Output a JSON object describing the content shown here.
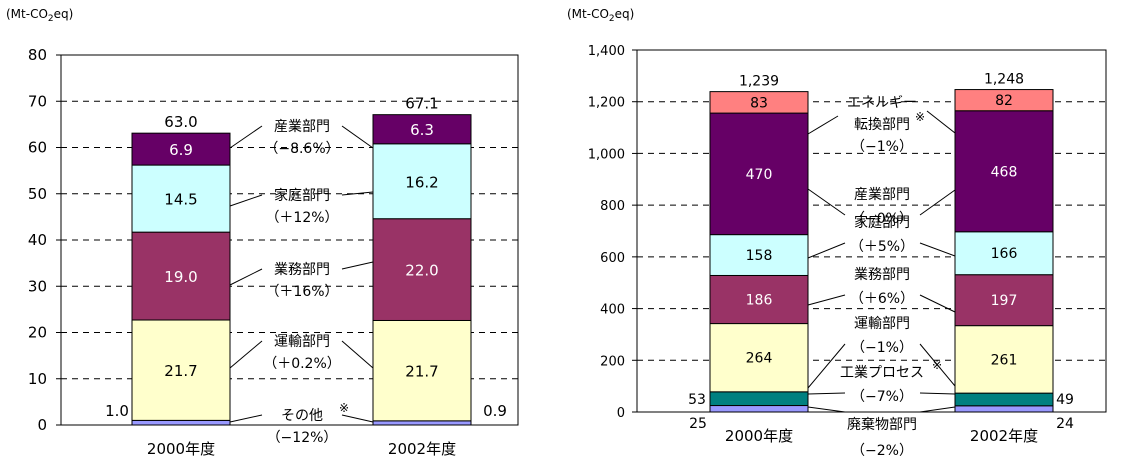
{
  "chart_data": [
    {
      "type": "bar",
      "stacked": true,
      "unit": "(Mt-CO₂eq)",
      "unit_parts": {
        "pre": "(Mt-CO",
        "sub": "2",
        "post": "eq)"
      },
      "ylim": [
        0,
        80
      ],
      "yticks": [
        "0",
        "10",
        "20",
        "30",
        "40",
        "50",
        "60",
        "70",
        "80"
      ],
      "grid": true,
      "categories": [
        "2000年度",
        "2002年度"
      ],
      "colors": [
        "#9999ff",
        "#ffffcc",
        "#993366",
        "#ccffff",
        "#660066"
      ],
      "series": [
        {
          "values": [
            1.0,
            0.9
          ],
          "labels": [
            "1.0",
            "0.9"
          ]
        },
        {
          "values": [
            21.7,
            21.7
          ],
          "labels": [
            "21.7",
            "21.7"
          ]
        },
        {
          "values": [
            19.0,
            22.0
          ],
          "labels": [
            "19.0",
            "22.0"
          ]
        },
        {
          "values": [
            14.5,
            16.2
          ],
          "labels": [
            "14.5",
            "16.2"
          ]
        },
        {
          "values": [
            6.9,
            6.3
          ],
          "labels": [
            "6.9",
            "6.3"
          ]
        }
      ],
      "totals": [
        "63.0",
        "67.1"
      ],
      "annotations": [
        {
          "name": "産業部門",
          "change": "（−8.6%）"
        },
        {
          "name": "家庭部門",
          "change": "（＋12%）"
        },
        {
          "name": "業務部門",
          "change": "（＋16%）"
        },
        {
          "name": "運輸部門",
          "change": "（＋0.2%）"
        },
        {
          "name": "その他",
          "mark": "※",
          "change": "（−12%）"
        }
      ]
    },
    {
      "type": "bar",
      "stacked": true,
      "unit": "(Mt-CO₂eq)",
      "unit_parts": {
        "pre": "(Mt-CO",
        "sub": "2",
        "post": "eq)"
      },
      "ylim": [
        0,
        1400
      ],
      "yticks": [
        "0",
        "200",
        "400",
        "600",
        "800",
        "1,000",
        "1,200",
        "1,400"
      ],
      "grid": true,
      "categories": [
        "2000年度",
        "2002年度"
      ],
      "colors": [
        "#9999ff",
        "#008080",
        "#ffffcc",
        "#993366",
        "#ccffff",
        "#660066",
        "#ff8080"
      ],
      "series": [
        {
          "values": [
            25,
            24
          ],
          "labels": [
            "25",
            "24"
          ]
        },
        {
          "values": [
            53,
            49
          ],
          "labels": [
            "53",
            "49"
          ]
        },
        {
          "values": [
            264,
            261
          ],
          "labels": [
            "264",
            "261"
          ]
        },
        {
          "values": [
            186,
            197
          ],
          "labels": [
            "186",
            "197"
          ]
        },
        {
          "values": [
            158,
            166
          ],
          "labels": [
            "158",
            "166"
          ]
        },
        {
          "values": [
            470,
            468
          ],
          "labels": [
            "470",
            "468"
          ]
        },
        {
          "values": [
            83,
            82
          ],
          "labels": [
            "83",
            "82"
          ]
        }
      ],
      "totals": [
        "1,239",
        "1,248"
      ],
      "annotations": [
        {
          "name": "エネルギー",
          "name2": "転換部門",
          "mark": "※",
          "change": "（−1%）"
        },
        {
          "name": "産業部門",
          "change": "（−0%）"
        },
        {
          "name": "家庭部門",
          "change": "（＋5%）"
        },
        {
          "name": "業務部門",
          "change": "（＋6%）"
        },
        {
          "name": "運輸部門",
          "change": "（−1%）"
        },
        {
          "name": "工業プロセス",
          "mark": "※",
          "change": "（−7%）"
        },
        {
          "name": "廃棄物部門",
          "change": "（−2%）"
        }
      ]
    }
  ]
}
